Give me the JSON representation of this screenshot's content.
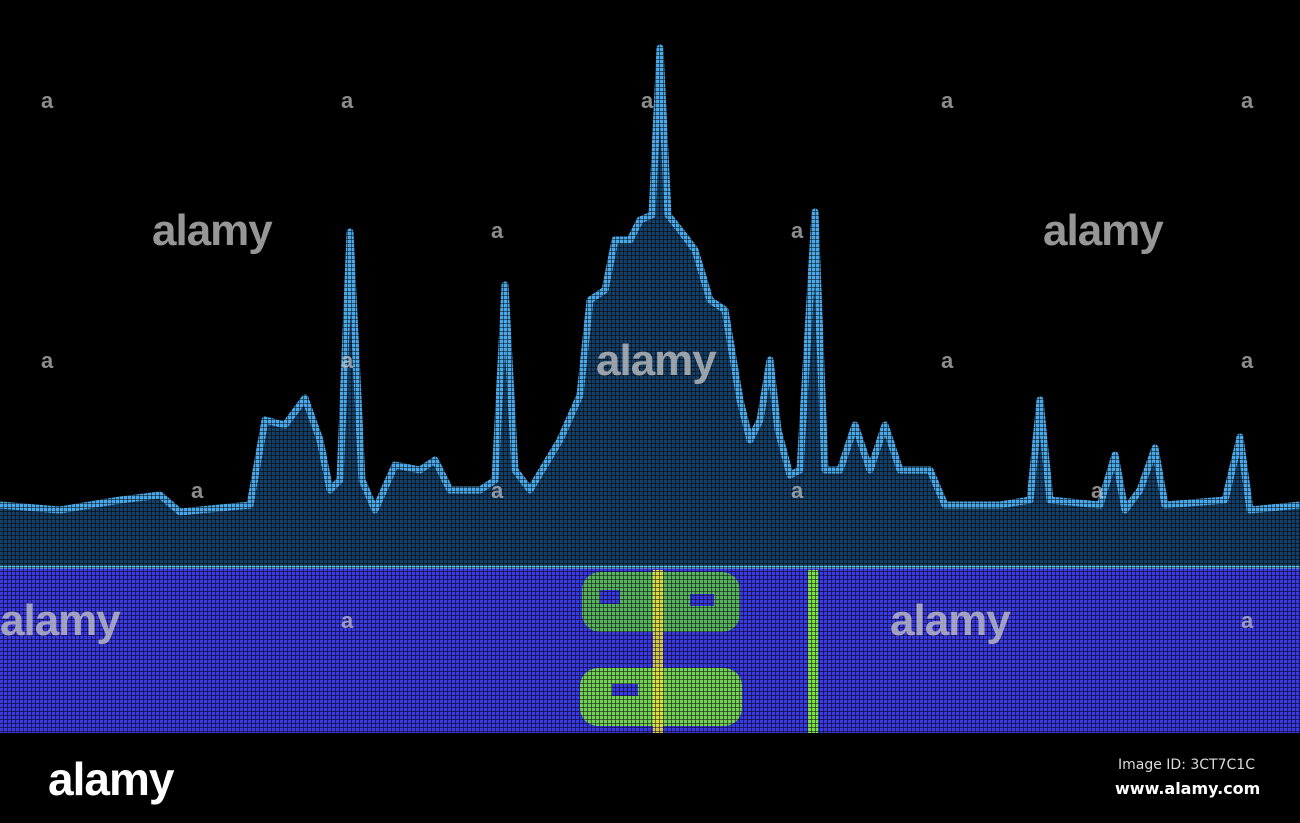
{
  "watermark": {
    "text": "alamy",
    "mark": "a"
  },
  "footer": {
    "logo": "alamy",
    "image_id": "Image ID: 3CT7C1C",
    "url": "www.alamy.com"
  },
  "colors": {
    "background": "#000000",
    "spectrum": "#4aa8e8",
    "spectrum_fill": "#1a4a78",
    "waterfall": "#3a3ae0",
    "signal": "#7be04a",
    "signal_core": "#f0e040"
  }
}
